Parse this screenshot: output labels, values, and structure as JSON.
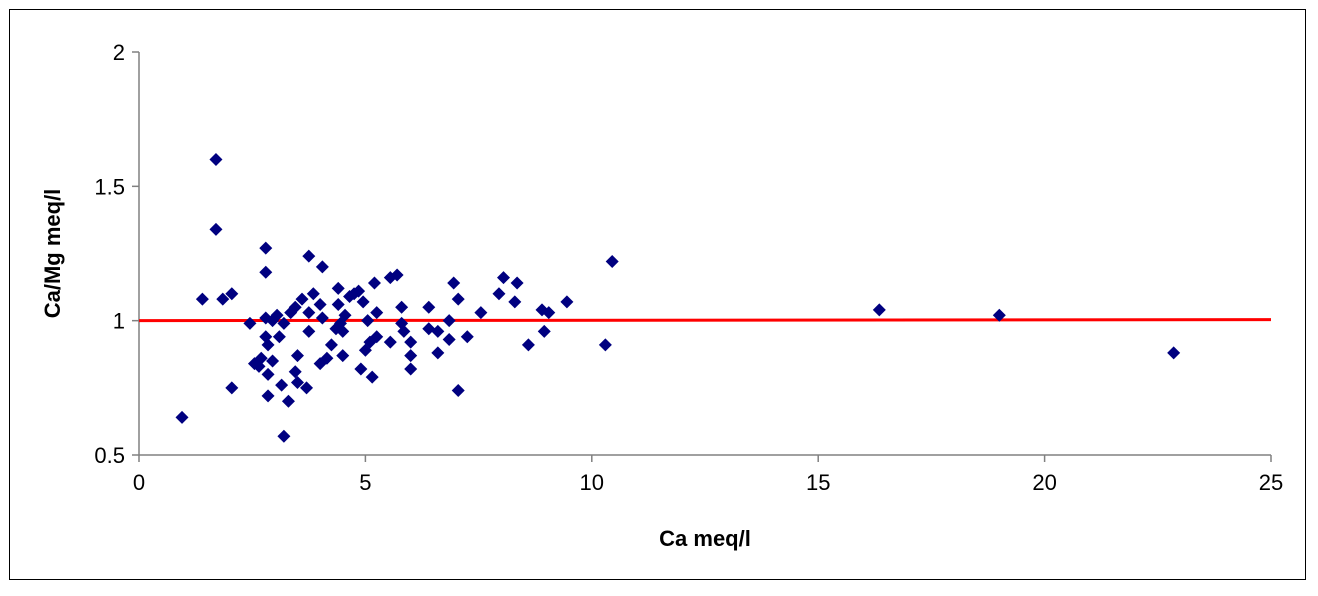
{
  "chart_data": {
    "type": "scatter",
    "title": "",
    "xlabel": "Ca meq/l",
    "ylabel": "Ca/Mg meq/l",
    "xlim": [
      0,
      25
    ],
    "ylim": [
      0.5,
      2
    ],
    "x_ticks": [
      "0",
      "5",
      "10",
      "15",
      "20",
      "25"
    ],
    "y_ticks": [
      "0.5",
      "1",
      "1.5",
      "2"
    ],
    "grid": false,
    "legend": "none",
    "marker_color": "#000080",
    "reference_line": {
      "color": "#ff0000",
      "x": [
        0,
        25
      ],
      "y": [
        1.0,
        1.004
      ]
    },
    "points": [
      [
        0.95,
        0.64
      ],
      [
        1.4,
        1.08
      ],
      [
        1.7,
        1.6
      ],
      [
        1.7,
        1.34
      ],
      [
        1.85,
        1.08
      ],
      [
        2.05,
        1.1
      ],
      [
        2.05,
        0.75
      ],
      [
        2.45,
        0.99
      ],
      [
        2.55,
        0.84
      ],
      [
        2.65,
        0.83
      ],
      [
        2.7,
        0.86
      ],
      [
        2.8,
        1.27
      ],
      [
        2.8,
        1.18
      ],
      [
        2.8,
        1.01
      ],
      [
        2.8,
        0.94
      ],
      [
        2.85,
        0.91
      ],
      [
        2.85,
        0.8
      ],
      [
        2.85,
        0.72
      ],
      [
        2.95,
        1.0
      ],
      [
        2.95,
        0.85
      ],
      [
        3.05,
        1.02
      ],
      [
        3.1,
        0.94
      ],
      [
        3.15,
        0.76
      ],
      [
        3.2,
        0.99
      ],
      [
        3.2,
        0.57
      ],
      [
        3.3,
        0.7
      ],
      [
        3.35,
        1.03
      ],
      [
        3.45,
        1.05
      ],
      [
        3.45,
        0.81
      ],
      [
        3.5,
        0.87
      ],
      [
        3.5,
        0.77
      ],
      [
        3.6,
        1.08
      ],
      [
        3.7,
        0.75
      ],
      [
        3.75,
        1.24
      ],
      [
        3.75,
        1.03
      ],
      [
        3.75,
        0.96
      ],
      [
        3.85,
        1.1
      ],
      [
        4.0,
        1.06
      ],
      [
        4.0,
        0.84
      ],
      [
        4.05,
        1.01
      ],
      [
        4.05,
        1.2
      ],
      [
        4.15,
        0.86
      ],
      [
        4.25,
        0.91
      ],
      [
        4.35,
        0.97
      ],
      [
        4.4,
        1.12
      ],
      [
        4.4,
        1.06
      ],
      [
        4.45,
        0.99
      ],
      [
        4.5,
        0.96
      ],
      [
        4.5,
        0.87
      ],
      [
        4.55,
        1.02
      ],
      [
        4.65,
        1.09
      ],
      [
        4.75,
        1.1
      ],
      [
        4.85,
        1.11
      ],
      [
        4.9,
        0.82
      ],
      [
        4.95,
        1.07
      ],
      [
        5.0,
        0.89
      ],
      [
        5.05,
        1.0
      ],
      [
        5.1,
        0.92
      ],
      [
        5.15,
        0.79
      ],
      [
        5.2,
        1.14
      ],
      [
        5.25,
        1.03
      ],
      [
        5.25,
        0.94
      ],
      [
        5.55,
        1.16
      ],
      [
        5.55,
        0.92
      ],
      [
        5.7,
        1.17
      ],
      [
        5.8,
        1.05
      ],
      [
        5.8,
        0.99
      ],
      [
        5.85,
        0.96
      ],
      [
        6.0,
        0.92
      ],
      [
        6.0,
        0.87
      ],
      [
        6.0,
        0.82
      ],
      [
        6.4,
        1.05
      ],
      [
        6.4,
        0.97
      ],
      [
        6.6,
        0.96
      ],
      [
        6.6,
        0.88
      ],
      [
        6.85,
        1.0
      ],
      [
        6.85,
        0.93
      ],
      [
        6.95,
        1.14
      ],
      [
        7.05,
        1.08
      ],
      [
        7.05,
        0.74
      ],
      [
        7.25,
        0.94
      ],
      [
        7.55,
        1.03
      ],
      [
        7.95,
        1.1
      ],
      [
        8.05,
        1.16
      ],
      [
        8.3,
        1.07
      ],
      [
        8.35,
        1.14
      ],
      [
        8.6,
        0.91
      ],
      [
        8.9,
        1.04
      ],
      [
        8.95,
        0.96
      ],
      [
        9.05,
        1.03
      ],
      [
        9.45,
        1.07
      ],
      [
        10.3,
        0.91
      ],
      [
        10.45,
        1.22
      ],
      [
        16.35,
        1.04
      ],
      [
        19.0,
        1.02
      ],
      [
        22.85,
        0.88
      ]
    ]
  }
}
